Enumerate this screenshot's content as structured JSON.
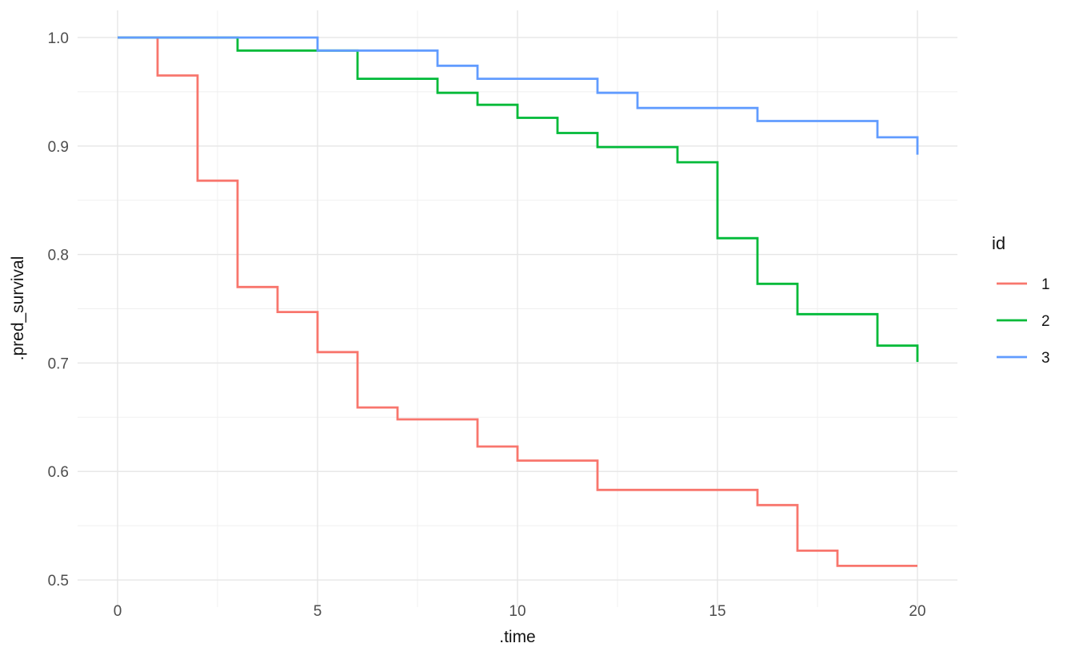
{
  "figure": {
    "background": "#ffffff"
  },
  "chart_data": {
    "type": "line",
    "subtype": "step",
    "title": "",
    "xlabel": ".time",
    "ylabel": ".pred_survival",
    "x_axis": {
      "range": [
        -1,
        21
      ],
      "ticks": [
        0,
        5,
        10,
        15,
        20
      ],
      "tick_labels": [
        "0",
        "5",
        "10",
        "15",
        "20"
      ],
      "minor_ticks": [
        2.5,
        7.5,
        12.5,
        17.5
      ]
    },
    "y_axis": {
      "range": [
        0.475,
        1.025
      ],
      "ticks": [
        0.5,
        0.6,
        0.7,
        0.8,
        0.9,
        1.0
      ],
      "tick_labels": [
        "0.5",
        "0.6",
        "0.7",
        "0.8",
        "0.9",
        "1.0"
      ],
      "minor_ticks": [
        0.55,
        0.65,
        0.75,
        0.85,
        0.95
      ]
    },
    "grid": {
      "on": true,
      "major_color": "#e6e6e6",
      "minor_color": "#efefef"
    },
    "legend": {
      "title": "id",
      "position": "right",
      "entries": [
        {
          "label": "1",
          "color": "#F8766D"
        },
        {
          "label": "2",
          "color": "#00BA38"
        },
        {
          "label": "3",
          "color": "#619CFF"
        }
      ]
    },
    "series": [
      {
        "name": "1",
        "color": "#F8766D",
        "points": [
          [
            0,
            1.0
          ],
          [
            1,
            0.965
          ],
          [
            2,
            0.868
          ],
          [
            3,
            0.77
          ],
          [
            4,
            0.747
          ],
          [
            5,
            0.71
          ],
          [
            6,
            0.659
          ],
          [
            7,
            0.648
          ],
          [
            9,
            0.623
          ],
          [
            10,
            0.61
          ],
          [
            12,
            0.583
          ],
          [
            16,
            0.569
          ],
          [
            17,
            0.527
          ],
          [
            18,
            0.513
          ],
          [
            20,
            0.513
          ]
        ]
      },
      {
        "name": "2",
        "color": "#00BA38",
        "points": [
          [
            0,
            1.0
          ],
          [
            3,
            0.988
          ],
          [
            6,
            0.962
          ],
          [
            8,
            0.949
          ],
          [
            9,
            0.938
          ],
          [
            10,
            0.926
          ],
          [
            11,
            0.912
          ],
          [
            12,
            0.899
          ],
          [
            14,
            0.885
          ],
          [
            15,
            0.815
          ],
          [
            16,
            0.773
          ],
          [
            17,
            0.745
          ],
          [
            19,
            0.716
          ],
          [
            20,
            0.701
          ]
        ]
      },
      {
        "name": "3",
        "color": "#619CFF",
        "points": [
          [
            0,
            1.0
          ],
          [
            5,
            0.988
          ],
          [
            8,
            0.974
          ],
          [
            9,
            0.962
          ],
          [
            12,
            0.949
          ],
          [
            13,
            0.935
          ],
          [
            16,
            0.923
          ],
          [
            19,
            0.908
          ],
          [
            20,
            0.892
          ]
        ]
      }
    ],
    "text_colors": {
      "tick": "#4d4d4d",
      "axis_title": "#141414",
      "legend": "#141414"
    }
  }
}
